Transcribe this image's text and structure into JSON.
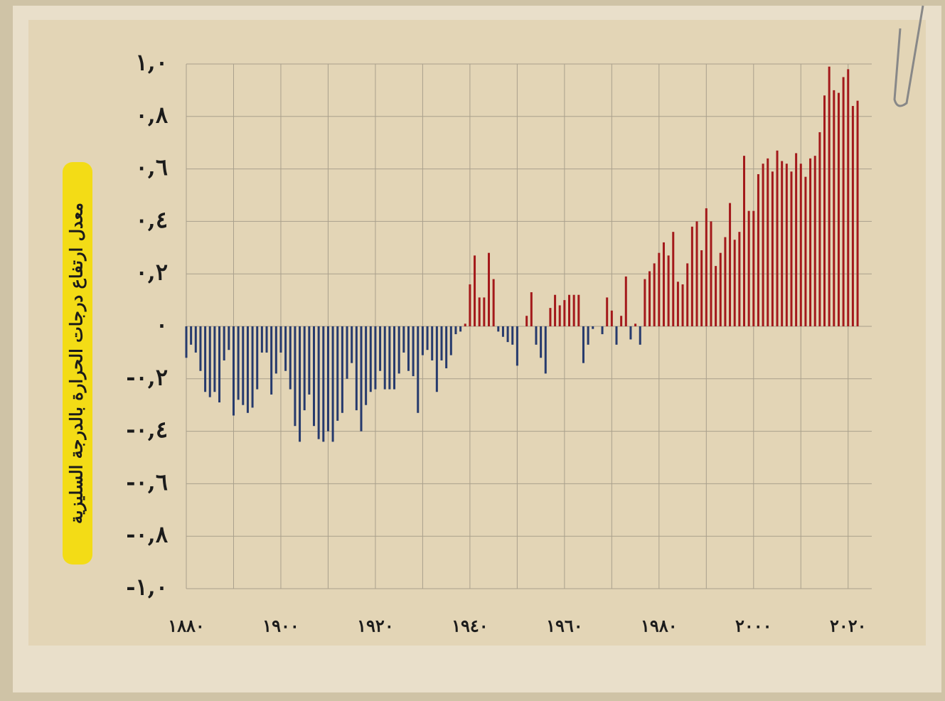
{
  "chart_data": {
    "type": "bar",
    "y_label": "معدل ارتفاع درجات الحرارة بالدرجة السليزية",
    "x": [
      1880,
      1881,
      1882,
      1883,
      1884,
      1885,
      1886,
      1887,
      1888,
      1889,
      1890,
      1891,
      1892,
      1893,
      1894,
      1895,
      1896,
      1897,
      1898,
      1899,
      1900,
      1901,
      1902,
      1903,
      1904,
      1905,
      1906,
      1907,
      1908,
      1909,
      1910,
      1911,
      1912,
      1913,
      1914,
      1915,
      1916,
      1917,
      1918,
      1919,
      1920,
      1921,
      1922,
      1923,
      1924,
      1925,
      1926,
      1927,
      1928,
      1929,
      1930,
      1931,
      1932,
      1933,
      1934,
      1935,
      1936,
      1937,
      1938,
      1939,
      1940,
      1941,
      1942,
      1943,
      1944,
      1945,
      1946,
      1947,
      1948,
      1949,
      1950,
      1951,
      1952,
      1953,
      1954,
      1955,
      1956,
      1957,
      1958,
      1959,
      1960,
      1961,
      1962,
      1963,
      1964,
      1965,
      1966,
      1967,
      1968,
      1969,
      1970,
      1971,
      1972,
      1973,
      1974,
      1975,
      1976,
      1977,
      1978,
      1979,
      1980,
      1981,
      1982,
      1983,
      1984,
      1985,
      1986,
      1987,
      1988,
      1989,
      1990,
      1991,
      1992,
      1993,
      1994,
      1995,
      1996,
      1997,
      1998,
      1999,
      2000,
      2001,
      2002,
      2003,
      2004,
      2005,
      2006,
      2007,
      2008,
      2009,
      2010,
      2011,
      2012,
      2013,
      2014,
      2015,
      2016,
      2017,
      2018,
      2019,
      2020,
      2021,
      2022
    ],
    "values": [
      -0.12,
      -0.07,
      -0.1,
      -0.17,
      -0.25,
      -0.27,
      -0.25,
      -0.29,
      -0.13,
      -0.09,
      -0.34,
      -0.28,
      -0.3,
      -0.33,
      -0.31,
      -0.24,
      -0.1,
      -0.1,
      -0.26,
      -0.18,
      -0.1,
      -0.17,
      -0.24,
      -0.38,
      -0.44,
      -0.32,
      -0.26,
      -0.38,
      -0.43,
      -0.44,
      -0.4,
      -0.44,
      -0.36,
      -0.33,
      -0.2,
      -0.14,
      -0.32,
      -0.4,
      -0.3,
      -0.25,
      -0.24,
      -0.17,
      -0.24,
      -0.24,
      -0.24,
      -0.18,
      -0.1,
      -0.17,
      -0.19,
      -0.33,
      -0.11,
      -0.09,
      -0.13,
      -0.25,
      -0.13,
      -0.16,
      -0.11,
      -0.03,
      -0.02,
      0.01,
      0.16,
      0.27,
      0.11,
      0.11,
      0.28,
      0.18,
      -0.02,
      -0.04,
      -0.06,
      -0.07,
      -0.15,
      0,
      0.04,
      0.13,
      -0.07,
      -0.12,
      -0.18,
      0.07,
      0.12,
      0.08,
      0.1,
      0.12,
      0.12,
      0.12,
      -0.14,
      -0.07,
      -0.01,
      0,
      -0.03,
      0.11,
      0.06,
      -0.07,
      0.04,
      0.19,
      -0.05,
      0.01,
      -0.07,
      0.18,
      0.21,
      0.24,
      0.28,
      0.32,
      0.27,
      0.36,
      0.17,
      0.16,
      0.24,
      0.38,
      0.4,
      0.29,
      0.45,
      0.4,
      0.23,
      0.28,
      0.34,
      0.47,
      0.33,
      0.36,
      0.65,
      0.44,
      0.44,
      0.58,
      0.62,
      0.64,
      0.59,
      0.67,
      0.63,
      0.62,
      0.59,
      0.66,
      0.62,
      0.57,
      0.64,
      0.65,
      0.74,
      0.88,
      0.99,
      0.9,
      0.89,
      0.95,
      0.98,
      0.84,
      0.86
    ],
    "color_positive": "#a3191b",
    "color_negative": "#263a6d",
    "xlim": [
      1880,
      2025
    ],
    "xticks": [
      {
        "value": 1880,
        "label": "١٨٨٠"
      },
      {
        "value": 1900,
        "label": "١٩٠٠"
      },
      {
        "value": 1920,
        "label": "١٩٢٠"
      },
      {
        "value": 1940,
        "label": "١٩٤٠"
      },
      {
        "value": 1960,
        "label": "١٩٦٠"
      },
      {
        "value": 1980,
        "label": "١٩٨٠"
      },
      {
        "value": 2000,
        "label": "٢٠٠٠"
      },
      {
        "value": 2020,
        "label": "٢٠٢٠"
      }
    ],
    "xgrid": [
      1880,
      1890,
      1900,
      1910,
      1920,
      1930,
      1940,
      1950,
      1960,
      1970,
      1980,
      1990,
      2000,
      2010,
      2020
    ],
    "ylim": [
      -1,
      1
    ],
    "yticks": [
      {
        "value": 1,
        "label": "١,٠"
      },
      {
        "value": 0.8,
        "label": "٠,٨"
      },
      {
        "value": 0.6,
        "label": "٠,٦"
      },
      {
        "value": 0.4,
        "label": "٠,٤"
      },
      {
        "value": 0.2,
        "label": "٠,٢"
      },
      {
        "value": 0,
        "label": "٠"
      },
      {
        "value": -0.2,
        "label": "-٠,٢"
      },
      {
        "value": -0.4,
        "label": "-٠,٤"
      },
      {
        "value": -0.6,
        "label": "-٠,٦"
      },
      {
        "value": -0.8,
        "label": "-٠,٨"
      },
      {
        "value": -1,
        "label": "-١,٠"
      }
    ],
    "grid": true
  }
}
